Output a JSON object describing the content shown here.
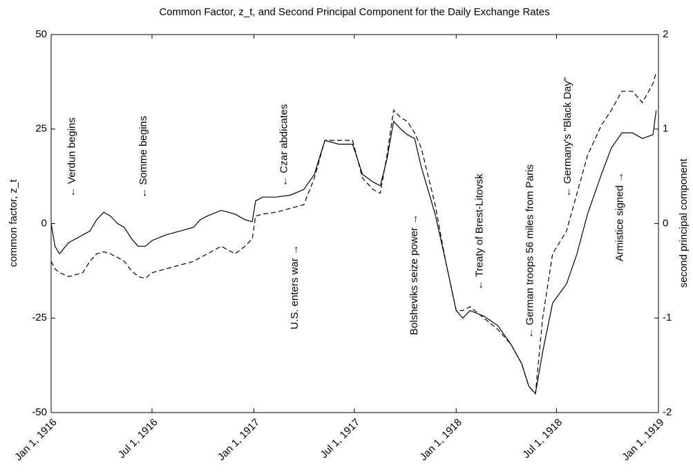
{
  "chart_data": {
    "type": "line",
    "title": "Common Factor, z_t, and Second Principal Component for the Daily Exchange Rates",
    "y_label": "common factor, z_t",
    "y2_label": "second principal component",
    "x": [
      "1916-01-01",
      "1916-01-08",
      "1916-01-16",
      "1916-02-02",
      "1916-02-15",
      "1916-02-27",
      "1916-03-11",
      "1916-03-23",
      "1916-04-05",
      "1916-04-17",
      "1916-04-30",
      "1916-05-12",
      "1916-05-25",
      "1916-06-06",
      "1916-06-19",
      "1916-07-01",
      "1916-07-26",
      "1916-08-20",
      "1916-09-14",
      "1916-09-26",
      "1916-10-09",
      "1916-11-03",
      "1916-11-28",
      "1916-12-16",
      "1916-12-29",
      "1917-01-04",
      "1917-01-17",
      "1917-02-10",
      "1917-03-07",
      "1917-04-01",
      "1917-04-20",
      "1917-05-09",
      "1917-06-03",
      "1917-06-28",
      "1917-07-16",
      "1917-08-04",
      "1917-08-17",
      "1917-08-29",
      "1917-09-10",
      "1917-09-23",
      "1917-10-05",
      "1917-10-18",
      "1917-10-30",
      "1917-11-24",
      "1917-12-13",
      "1918-01-01",
      "1918-01-13",
      "1918-01-26",
      "1918-02-20",
      "1918-03-17",
      "1918-04-10",
      "1918-04-29",
      "1918-05-12",
      "1918-05-24",
      "1918-06-06",
      "1918-06-24",
      "1918-07-19",
      "1918-08-07",
      "1918-08-26",
      "1918-09-20",
      "1918-10-08",
      "1918-10-27",
      "1918-11-15",
      "1918-12-03",
      "1918-12-22",
      "1918-12-28"
    ],
    "series": [
      {
        "color": "#000000",
        "linestyle": "solid",
        "axis": "y",
        "values": [
          0,
          -6,
          -8,
          -5,
          -4,
          -3,
          -2,
          1,
          3,
          2,
          0,
          -1,
          -4,
          -6,
          -6,
          -4.5,
          -3,
          -2,
          -1,
          1,
          2,
          3.5,
          2.5,
          1,
          0.5,
          6,
          7,
          7,
          7.5,
          9,
          13,
          22,
          21,
          21,
          13,
          11,
          10,
          17,
          27,
          25,
          23.5,
          22.5,
          15,
          2.5,
          -10,
          -23,
          -25,
          -23,
          -24.5,
          -27,
          -32,
          -37,
          -43,
          -45,
          -34,
          -21,
          -16,
          -8,
          2.5,
          13,
          20,
          24,
          24,
          22.5,
          23.5,
          30
        ]
      },
      {
        "color": "#000000",
        "linestyle": "dashed",
        "axis": "y2",
        "values": [
          -0.4,
          -0.48,
          -0.52,
          -0.56,
          -0.54,
          -0.52,
          -0.4,
          -0.32,
          -0.3,
          -0.32,
          -0.36,
          -0.4,
          -0.5,
          -0.56,
          -0.58,
          -0.52,
          -0.48,
          -0.44,
          -0.4,
          -0.36,
          -0.32,
          -0.24,
          -0.32,
          -0.24,
          -0.16,
          0.08,
          0.1,
          0.12,
          0.16,
          0.2,
          0.48,
          0.88,
          0.88,
          0.88,
          0.48,
          0.36,
          0.32,
          0.72,
          1.2,
          1.12,
          1.08,
          0.96,
          0.8,
          0.2,
          -0.4,
          -0.92,
          -0.92,
          -0.88,
          -1.0,
          -1.12,
          -1.28,
          -1.48,
          -1.72,
          -1.8,
          -1.0,
          -0.32,
          -0.08,
          0.32,
          0.72,
          1.04,
          1.2,
          1.4,
          1.4,
          1.28,
          1.48,
          1.6
        ]
      }
    ],
    "xlim": [
      "1916-01-01",
      "1919-01-01"
    ],
    "xticks": [
      {
        "value": "1916-01-01",
        "label": "Jan 1, 1916"
      },
      {
        "value": "1916-07-01",
        "label": "Jul 1, 1916"
      },
      {
        "value": "1917-01-01",
        "label": "Jan 1, 1917"
      },
      {
        "value": "1917-07-01",
        "label": "Jul 1, 1917"
      },
      {
        "value": "1918-01-01",
        "label": "Jan 1, 1918"
      },
      {
        "value": "1918-07-01",
        "label": "Jul 1, 1918"
      },
      {
        "value": "1919-01-01",
        "label": "Jan 1, 1919"
      }
    ],
    "ylim": [
      -50,
      50
    ],
    "yticks": [
      -50,
      -25,
      0,
      25,
      50
    ],
    "y2lim": [
      -2,
      2
    ],
    "y2ticks": [
      -2,
      -1,
      0,
      1,
      2
    ],
    "grid": false,
    "annotations": [
      {
        "text": "← Verdun begins",
        "x": "1916-02-08",
        "y": 7
      },
      {
        "text": "← Somme begins",
        "x": "1916-06-16",
        "y": 6.7
      },
      {
        "text": "← Czar abdicates",
        "x": "1917-02-25",
        "y": 9.8
      },
      {
        "text": "U.S. enters war →",
        "x": "1917-03-16",
        "y": -28
      },
      {
        "text": "Bolsheviks seize power →",
        "x": "1917-10-18",
        "y": -29.5
      },
      {
        "text": "← Treaty of Brest-Litovsk",
        "x": "1918-02-13",
        "y": -17.6
      },
      {
        "text": "← German troops 56 miles from Paris",
        "x": "1918-05-15",
        "y": -30.4
      },
      {
        "text": "← Germany's \"Black Day\"",
        "x": "1918-07-22",
        "y": 7
      },
      {
        "text": "Armistice signed →",
        "x": "1918-10-24",
        "y": -10
      }
    ]
  }
}
